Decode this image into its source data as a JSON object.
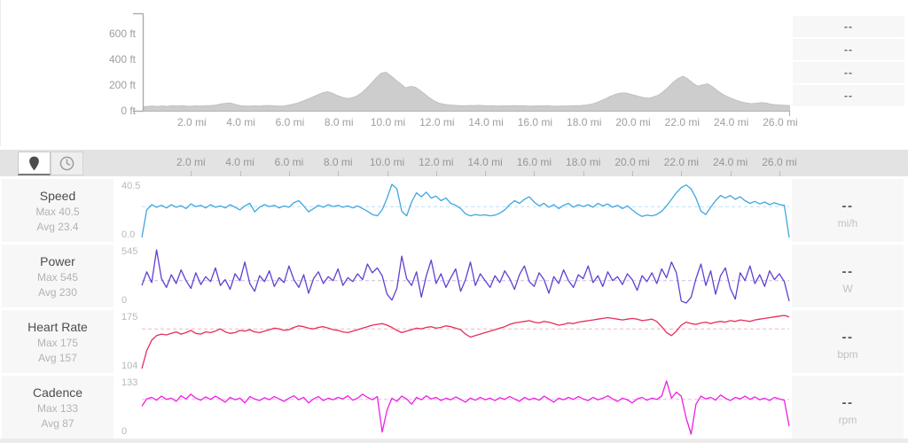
{
  "theme": {
    "panel_bg": "#f7f7f7",
    "toolbar_bg": "#e3e3e3",
    "axis_color": "#aaaaaa",
    "label_color": "#9e9e9e"
  },
  "elevation_panel": {
    "y_ticks": [
      "600 ft",
      "400 ft",
      "200 ft",
      "0 ft"
    ],
    "x_ticks": [
      "2.0 mi",
      "4.0 mi",
      "6.0 mi",
      "8.0 mi",
      "10.0 mi",
      "12.0 mi",
      "14.0 mi",
      "16.0 mi",
      "18.0 mi",
      "20.0 mi",
      "22.0 mi",
      "24.0 mi",
      "26.0 mi"
    ]
  },
  "summary_panel": {
    "rows": [
      "--",
      "--",
      "--",
      "--"
    ]
  },
  "toolbar": {
    "distance_button_icon": "map-pin-icon",
    "time_button_icon": "clock-icon",
    "x_ticks": [
      "2.0 mi",
      "4.0 mi",
      "6.0 mi",
      "8.0 mi",
      "10.0 mi",
      "12.0 mi",
      "14.0 mi",
      "16.0 mi",
      "18.0 mi",
      "20.0 mi",
      "22.0 mi",
      "24.0 mi",
      "26.0 mi"
    ]
  },
  "metrics": [
    {
      "name": "Speed",
      "max_label": "Max 40.5",
      "avg_label": "Avg 23.4",
      "ymax_label": "40.5",
      "ymin_label": "0.0",
      "value": "--",
      "unit": "mi/h"
    },
    {
      "name": "Power",
      "max_label": "Max 545",
      "avg_label": "Avg 230",
      "ymax_label": "545",
      "ymin_label": "0",
      "value": "--",
      "unit": "W"
    },
    {
      "name": "Heart Rate",
      "max_label": "Max 175",
      "avg_label": "Avg 157",
      "ymax_label": "175",
      "ymin_label": "104",
      "value": "--",
      "unit": "bpm"
    },
    {
      "name": "Cadence",
      "max_label": "Max 133",
      "avg_label": "Avg 87",
      "ymax_label": "133",
      "ymin_label": "0",
      "value": "--",
      "unit": "rpm"
    }
  ],
  "chart_data": [
    {
      "id": "elevation",
      "type": "area",
      "xlabel": "mi",
      "ylabel": "ft",
      "x_range": [
        0,
        26.4
      ],
      "y_ticks": [
        0,
        200,
        400,
        600
      ],
      "x_tick_interval_mi": 2,
      "fill_color": "#cdcdcd",
      "edge_color": "#c0c0c0",
      "grid": false,
      "values": [
        30,
        34,
        37,
        33,
        38,
        34,
        39,
        36,
        40,
        36,
        35,
        38,
        36,
        39,
        41,
        44,
        52,
        58,
        60,
        50,
        40,
        37,
        36,
        38,
        36,
        39,
        41,
        38,
        36,
        37,
        44,
        52,
        62,
        76,
        92,
        108,
        124,
        140,
        148,
        135,
        118,
        104,
        96,
        100,
        115,
        140,
        175,
        215,
        258,
        292,
        300,
        272,
        240,
        208,
        178,
        190,
        183,
        158,
        128,
        98,
        74,
        58,
        50,
        45,
        42,
        40,
        38,
        41,
        39,
        42,
        40,
        37,
        39,
        36,
        38,
        37,
        39,
        38,
        40,
        37,
        36,
        38,
        37,
        39,
        36,
        35,
        37,
        36,
        38,
        39,
        41,
        44,
        50,
        60,
        75,
        92,
        110,
        126,
        136,
        140,
        131,
        121,
        110,
        101,
        98,
        108,
        122,
        150,
        185,
        222,
        252,
        268,
        248,
        215,
        192,
        200,
        210,
        188,
        158,
        132,
        112,
        95,
        80,
        68,
        60,
        55,
        58,
        63,
        60,
        52,
        47,
        44,
        42,
        40
      ]
    },
    {
      "id": "speed",
      "type": "line",
      "name": "Speed",
      "unit": "mi/h",
      "x_range": [
        0,
        26.4
      ],
      "y_range": [
        0,
        40.5
      ],
      "max": 40.5,
      "avg": 23.4,
      "color": "#3fa7e0",
      "avg_line": "dashed",
      "values": [
        0,
        21,
        25,
        23,
        24.5,
        22.5,
        25,
        23,
        24.2,
        22,
        25.5,
        23.5,
        24.5,
        22.5,
        25,
        23,
        24,
        22.5,
        25,
        23,
        21,
        24,
        26,
        19.5,
        23,
        25,
        23.5,
        24.5,
        22.5,
        24,
        23,
        26.5,
        28,
        24,
        19.5,
        22,
        24.5,
        23,
        25,
        23.5,
        24.5,
        23,
        24,
        22.5,
        24,
        22,
        20,
        17.5,
        16.5,
        21,
        30,
        40.5,
        37,
        20,
        16.5,
        27,
        34,
        31,
        34.5,
        30,
        31.5,
        28,
        30,
        26,
        24.5,
        22,
        18,
        16.5,
        17.5,
        16.8,
        17.2,
        16.5,
        17,
        18.5,
        21,
        25,
        28,
        26,
        29,
        31,
        27,
        24,
        26,
        23,
        25,
        22,
        24.5,
        26,
        23,
        25,
        23.5,
        25,
        23,
        26,
        24,
        25.5,
        23,
        24.5,
        22,
        24,
        21,
        18,
        16,
        17,
        16.5,
        17.5,
        20,
        24,
        29,
        34,
        38,
        40,
        37,
        30,
        20,
        17.5,
        23,
        28,
        32,
        30,
        32,
        29,
        31,
        28,
        26,
        27.5,
        25.5,
        27,
        25,
        26.5,
        25,
        24.5,
        0
      ]
    },
    {
      "id": "power",
      "type": "line",
      "name": "Power",
      "unit": "W",
      "x_range": [
        0,
        26.4
      ],
      "y_range": [
        0,
        545
      ],
      "max": 545,
      "avg": 230,
      "color": "#6240cf",
      "avg_line": "dashed",
      "values": [
        180,
        320,
        210,
        545,
        250,
        160,
        290,
        200,
        340,
        230,
        150,
        310,
        190,
        270,
        220,
        360,
        180,
        240,
        140,
        300,
        230,
        420,
        200,
        120,
        280,
        220,
        330,
        170,
        260,
        210,
        380,
        240,
        160,
        290,
        100,
        250,
        320,
        200,
        270,
        230,
        350,
        180,
        260,
        220,
        300,
        240,
        400,
        310,
        360,
        280,
        90,
        30,
        150,
        480,
        250,
        180,
        320,
        60,
        280,
        440,
        200,
        300,
        160,
        260,
        350,
        120,
        240,
        420,
        180,
        300,
        230,
        160,
        280,
        210,
        330,
        250,
        140,
        290,
        380,
        220,
        170,
        310,
        240,
        100,
        270,
        200,
        340,
        230,
        160,
        290,
        250,
        380,
        210,
        280,
        170,
        320,
        230,
        270,
        190,
        300,
        240,
        130,
        280,
        220,
        310,
        200,
        350,
        260,
        420,
        310,
        20,
        0,
        60,
        250,
        400,
        180,
        330,
        90,
        280,
        360,
        150,
        40,
        310,
        230,
        380,
        200,
        290,
        170,
        330,
        240,
        300,
        220,
        20
      ]
    },
    {
      "id": "heart_rate",
      "type": "line",
      "name": "Heart Rate",
      "unit": "bpm",
      "x_range": [
        0,
        26.4
      ],
      "y_range": [
        104,
        175
      ],
      "max": 175,
      "avg": 157,
      "color": "#e52e5c",
      "avg_line": "dashed",
      "values": [
        104,
        128,
        142,
        148,
        150,
        149,
        151,
        153,
        150,
        152,
        155,
        151,
        150,
        153,
        152,
        154,
        157,
        153,
        151,
        152,
        155,
        154,
        156,
        153,
        152,
        154,
        156,
        158,
        157,
        155,
        156,
        159,
        161,
        160,
        158,
        157,
        159,
        160,
        158,
        156,
        155,
        153,
        152,
        154,
        156,
        158,
        160,
        162,
        163,
        164,
        162,
        159,
        155,
        152,
        154,
        156,
        158,
        157,
        159,
        160,
        158,
        159,
        161,
        160,
        158,
        156,
        150,
        146,
        148,
        150,
        152,
        154,
        156,
        158,
        160,
        163,
        165,
        166,
        167,
        168,
        166,
        165,
        167,
        166,
        164,
        162,
        163,
        165,
        164,
        166,
        167,
        168,
        169,
        170,
        171,
        172,
        171,
        170,
        169,
        170,
        171,
        170,
        168,
        169,
        170,
        167,
        160,
        152,
        148,
        154,
        162,
        166,
        164,
        163,
        165,
        166,
        164,
        166,
        167,
        166,
        168,
        167,
        169,
        168,
        167,
        169,
        170,
        171,
        172,
        173,
        174,
        175,
        173
      ]
    },
    {
      "id": "cadence",
      "type": "line",
      "name": "Cadence",
      "unit": "rpm",
      "x_range": [
        0,
        26.4
      ],
      "y_range": [
        0,
        133
      ],
      "max": 133,
      "avg": 87,
      "color": "#ec20e0",
      "avg_line": "dashed",
      "values": [
        70,
        88,
        92,
        85,
        95,
        87,
        90,
        82,
        96,
        88,
        100,
        90,
        85,
        93,
        87,
        95,
        88,
        80,
        92,
        86,
        90,
        78,
        94,
        88,
        84,
        91,
        86,
        94,
        88,
        82,
        90,
        96,
        86,
        92,
        78,
        88,
        94,
        84,
        90,
        86,
        92,
        88,
        96,
        85,
        90,
        100,
        92,
        86,
        94,
        5,
        60,
        90,
        82,
        95,
        88,
        75,
        92,
        86,
        96,
        88,
        92,
        84,
        90,
        86,
        93,
        87,
        80,
        90,
        85,
        92,
        86,
        90,
        84,
        91,
        87,
        94,
        88,
        82,
        92,
        86,
        90,
        85,
        95,
        88,
        80,
        90,
        86,
        92,
        87,
        94,
        88,
        84,
        92,
        86,
        90,
        96,
        88,
        82,
        90,
        86,
        78,
        88,
        92,
        85,
        90,
        87,
        95,
        133,
        90,
        105,
        95,
        40,
        0,
        75,
        95,
        88,
        92,
        85,
        98,
        90,
        84,
        92,
        88,
        95,
        87,
        93,
        86,
        90,
        84,
        92,
        88,
        85,
        20
      ]
    }
  ]
}
